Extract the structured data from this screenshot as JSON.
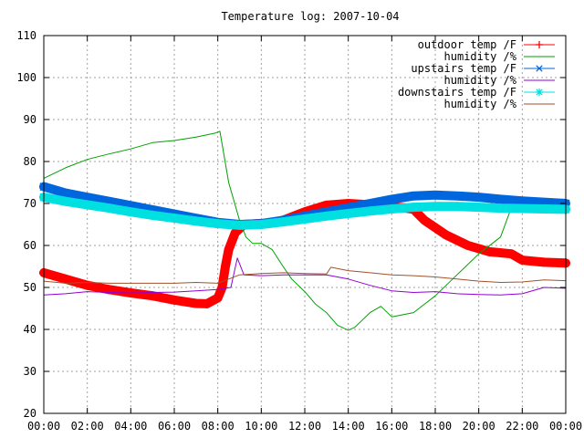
{
  "chart_data": {
    "type": "line",
    "title": "Temperature log: 2007-10-04",
    "xlabel": "",
    "ylabel": "",
    "xlim": [
      0,
      24
    ],
    "ylim": [
      20,
      110
    ],
    "grid": true,
    "legend_position": "top-right",
    "x_ticks": [
      "00:00",
      "02:00",
      "04:00",
      "06:00",
      "08:00",
      "10:00",
      "12:00",
      "14:00",
      "16:00",
      "18:00",
      "20:00",
      "22:00",
      "00:00"
    ],
    "y_ticks": [
      "20",
      "30",
      "40",
      "50",
      "60",
      "70",
      "80",
      "90",
      "100",
      "110"
    ],
    "series": [
      {
        "name": "outdoor temp /F",
        "color": "#ff0000",
        "marker": "plus",
        "points": [
          [
            0,
            53.5
          ],
          [
            1,
            52
          ],
          [
            2,
            50.5
          ],
          [
            3,
            49.5
          ],
          [
            4,
            48.7
          ],
          [
            5,
            48
          ],
          [
            6,
            47
          ],
          [
            7,
            46.2
          ],
          [
            7.5,
            46.1
          ],
          [
            8,
            47.5
          ],
          [
            8.2,
            50
          ],
          [
            8.35,
            55
          ],
          [
            8.5,
            59
          ],
          [
            8.8,
            63
          ],
          [
            9.2,
            65
          ],
          [
            9.8,
            65.2
          ],
          [
            10.3,
            65.3
          ],
          [
            11,
            66
          ],
          [
            12,
            68
          ],
          [
            13,
            69.6
          ],
          [
            14,
            70
          ],
          [
            14.6,
            69.8
          ],
          [
            15.5,
            69.4
          ],
          [
            16.5,
            69
          ],
          [
            17,
            68.6
          ],
          [
            17.5,
            66
          ],
          [
            18.5,
            62.5
          ],
          [
            19.5,
            60
          ],
          [
            20.5,
            58.5
          ],
          [
            21.5,
            58
          ],
          [
            22,
            56.5
          ],
          [
            23,
            56
          ],
          [
            24,
            55.8
          ]
        ]
      },
      {
        "name": "humidity /%",
        "color": "#00a000",
        "marker": "none",
        "points": [
          [
            0,
            76
          ],
          [
            1,
            78.5
          ],
          [
            2,
            80.5
          ],
          [
            3,
            81.8
          ],
          [
            4,
            83
          ],
          [
            5,
            84.5
          ],
          [
            6,
            85
          ],
          [
            7,
            85.8
          ],
          [
            7.9,
            86.8
          ],
          [
            8.1,
            87.2
          ],
          [
            8.5,
            75
          ],
          [
            9,
            66
          ],
          [
            9.3,
            62
          ],
          [
            9.6,
            60.5
          ],
          [
            10,
            60.5
          ],
          [
            10.5,
            59
          ],
          [
            11,
            55
          ],
          [
            11.4,
            52
          ],
          [
            12,
            49
          ],
          [
            12.5,
            46
          ],
          [
            13,
            44
          ],
          [
            13.5,
            41
          ],
          [
            14,
            39.8
          ],
          [
            14.3,
            40.5
          ],
          [
            15,
            44
          ],
          [
            15.5,
            45.5
          ],
          [
            16,
            43
          ],
          [
            17,
            44
          ],
          [
            17.5,
            46
          ],
          [
            18,
            48
          ],
          [
            19,
            53
          ],
          [
            20,
            58
          ],
          [
            21,
            62
          ],
          [
            21.5,
            69
          ],
          [
            22,
            70.5
          ],
          [
            22.5,
            70.5
          ],
          [
            23,
            71
          ],
          [
            24,
            71
          ]
        ]
      },
      {
        "name": "upstairs temp /F",
        "color": "#0066dd",
        "marker": "x",
        "points": [
          [
            0,
            74
          ],
          [
            1,
            72.5
          ],
          [
            2,
            71.5
          ],
          [
            3,
            70.5
          ],
          [
            4,
            69.5
          ],
          [
            5,
            68.5
          ],
          [
            6,
            67.5
          ],
          [
            7,
            66.5
          ],
          [
            8,
            65.5
          ],
          [
            9,
            65
          ],
          [
            10,
            65.2
          ],
          [
            11,
            66
          ],
          [
            12,
            67
          ],
          [
            13,
            68
          ],
          [
            14,
            69
          ],
          [
            15,
            70
          ],
          [
            16,
            71
          ],
          [
            17,
            71.8
          ],
          [
            18,
            72
          ],
          [
            19,
            71.8
          ],
          [
            20,
            71.5
          ],
          [
            21,
            71
          ],
          [
            22,
            70.6
          ],
          [
            23,
            70.3
          ],
          [
            24,
            70
          ]
        ]
      },
      {
        "name": "humidity /%",
        "color": "#9400d3",
        "marker": "none",
        "points": [
          [
            0,
            48.2
          ],
          [
            1,
            48.5
          ],
          [
            2,
            49
          ],
          [
            3,
            48.8
          ],
          [
            4,
            48.7
          ],
          [
            5,
            48.8
          ],
          [
            6,
            48.9
          ],
          [
            7,
            49.2
          ],
          [
            8,
            49.5
          ],
          [
            8.6,
            50
          ],
          [
            8.9,
            57
          ],
          [
            9.2,
            53
          ],
          [
            10,
            52.8
          ],
          [
            11,
            53
          ],
          [
            12,
            53
          ],
          [
            13,
            53
          ],
          [
            14,
            52
          ],
          [
            15,
            50.5
          ],
          [
            16,
            49.2
          ],
          [
            17,
            48.8
          ],
          [
            18,
            49
          ],
          [
            19,
            48.5
          ],
          [
            20,
            48.3
          ],
          [
            21,
            48.2
          ],
          [
            22,
            48.5
          ],
          [
            23,
            50
          ],
          [
            24,
            49.8
          ]
        ]
      },
      {
        "name": "downstairs temp /F",
        "color": "#00e0e0",
        "marker": "star",
        "points": [
          [
            0,
            71.5
          ],
          [
            1,
            70.5
          ],
          [
            2,
            69.7
          ],
          [
            3,
            68.9
          ],
          [
            4,
            68
          ],
          [
            5,
            67.2
          ],
          [
            6,
            66.5
          ],
          [
            7,
            65.8
          ],
          [
            8,
            65.2
          ],
          [
            9,
            64.8
          ],
          [
            10,
            65
          ],
          [
            11,
            65.6
          ],
          [
            12,
            66.3
          ],
          [
            13,
            67
          ],
          [
            14,
            67.6
          ],
          [
            15,
            68.2
          ],
          [
            16,
            68.7
          ],
          [
            17,
            69.1
          ],
          [
            18,
            69.3
          ],
          [
            19,
            69.3
          ],
          [
            20,
            69.1
          ],
          [
            21,
            68.9
          ],
          [
            22,
            68.8
          ],
          [
            23,
            68.7
          ],
          [
            24,
            68.6
          ]
        ]
      },
      {
        "name": "humidity /%",
        "color": "#a0522d",
        "marker": "none",
        "points": [
          [
            0,
            51.5
          ],
          [
            1,
            51
          ],
          [
            2,
            51.2
          ],
          [
            3,
            51
          ],
          [
            4,
            51
          ],
          [
            5,
            51
          ],
          [
            6,
            51
          ],
          [
            7,
            51.2
          ],
          [
            8,
            51
          ],
          [
            8.5,
            52
          ],
          [
            9,
            53
          ],
          [
            10,
            53.3
          ],
          [
            11,
            53.5
          ],
          [
            12,
            53.3
          ],
          [
            13,
            53.2
          ],
          [
            13.2,
            54.8
          ],
          [
            14,
            54
          ],
          [
            15,
            53.5
          ],
          [
            16,
            53
          ],
          [
            17,
            52.8
          ],
          [
            18,
            52.5
          ],
          [
            19,
            52
          ],
          [
            20,
            51.5
          ],
          [
            21,
            51.2
          ],
          [
            22,
            51.3
          ],
          [
            23,
            51.8
          ],
          [
            24,
            51.6
          ]
        ]
      }
    ]
  }
}
